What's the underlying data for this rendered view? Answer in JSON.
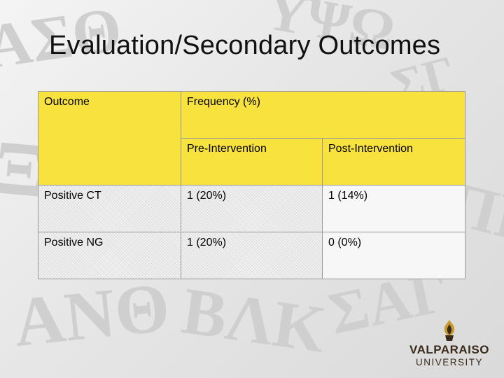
{
  "slide": {
    "title": "Evaluation/Secondary Outcomes"
  },
  "table": {
    "header": {
      "outcome": "Outcome",
      "frequency": "Frequency (%)",
      "pre": "Pre-Intervention",
      "post": "Post-Intervention"
    },
    "rows": [
      {
        "outcome": "Positive CT",
        "pre": "1 (20%)",
        "post": "1 (14%)"
      },
      {
        "outcome": "Positive NG",
        "pre": "1 (20%)",
        "post": "0 (0%)"
      }
    ]
  },
  "logo": {
    "name": "VALPARAISO",
    "sub": "UNIVERSITY"
  },
  "colors": {
    "header_yellow": "#f7e23e",
    "logo_brown": "#3a2a1a",
    "logo_gold": "#c99a2e"
  },
  "icons": {
    "logo_mark": "torch-flame-icon"
  }
}
